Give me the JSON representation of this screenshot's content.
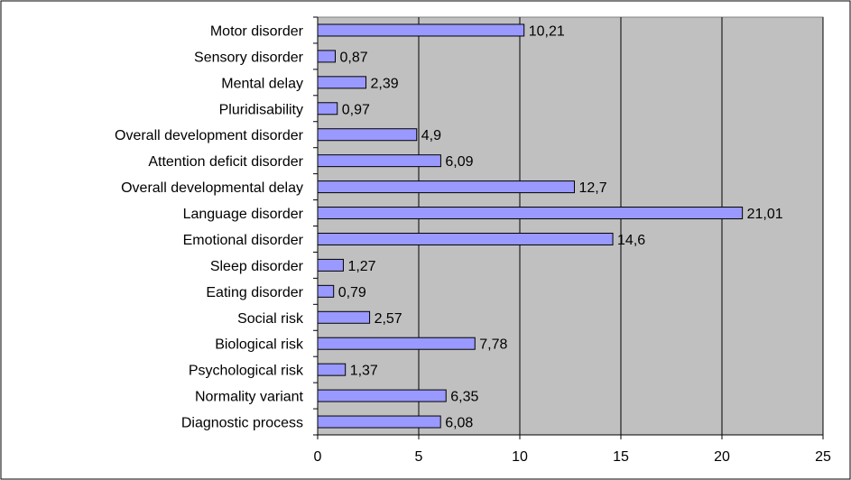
{
  "chart_data": {
    "type": "bar",
    "orientation": "horizontal",
    "categories": [
      "Motor disorder",
      "Sensory disorder",
      "Mental delay",
      "Pluridisability",
      "Overall development disorder",
      "Attention deficit disorder",
      "Overall developmental delay",
      "Language disorder",
      "Emotional disorder",
      "Sleep disorder",
      "Eating disorder",
      "Social risk",
      "Biological risk",
      "Psychological risk",
      "Normality variant",
      "Diagnostic process"
    ],
    "values": [
      10.21,
      0.87,
      2.39,
      0.97,
      4.9,
      6.09,
      12.7,
      21.01,
      14.6,
      1.27,
      0.79,
      2.57,
      7.78,
      1.37,
      6.35,
      6.08
    ],
    "data_labels": [
      "10,21",
      "0,87",
      "2,39",
      "0,97",
      "4,9",
      "6,09",
      "12,7",
      "21,01",
      "14,6",
      "1,27",
      "0,79",
      "2,57",
      "7,78",
      "1,37",
      "6,35",
      "6,08"
    ],
    "xlim": [
      0,
      25
    ],
    "x_ticks": [
      0,
      5,
      10,
      15,
      20,
      25
    ],
    "x_tick_labels": [
      "0",
      "5",
      "10",
      "15",
      "20",
      "25"
    ],
    "title": "",
    "xlabel": "",
    "ylabel": "",
    "grid": "vertical",
    "legend": "none",
    "colors": {
      "bar_fill": "#9999ff",
      "bar_stroke": "#000000",
      "plot_background": "#c0c0c0",
      "gridline": "#000000",
      "page_background": "#ffffff"
    }
  }
}
